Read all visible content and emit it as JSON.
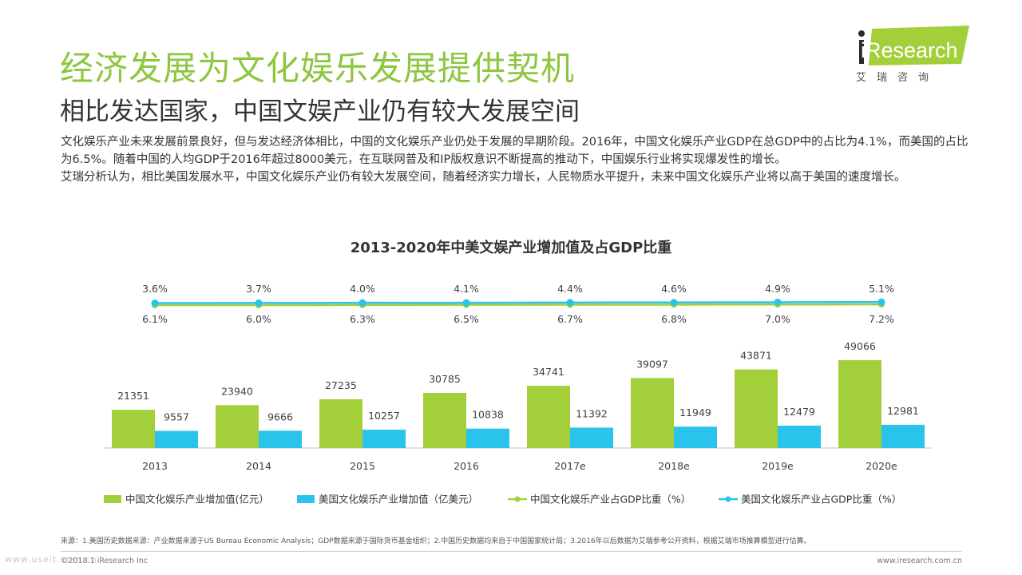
{
  "header": {
    "title": "经济发展为文化娱乐发展提供契机",
    "subtitle": "相比发达国家，中国文娱产业仍有较大发展空间",
    "logo_text": "iResearch",
    "logo_cn": "艾瑞咨询"
  },
  "body": {
    "paragraph1": "文化娱乐产业未来发展前景良好，但与发达经济体相比，中国的文化娱乐产业仍处于发展的早期阶段。2016年，中国文化娱乐产业GDP在总GDP中的占比为4.1%，而美国的占比为6.5%。随着中国的人均GDP于2016年超过8000美元，在互联网普及和IP版权意识不断提高的推动下，中国娱乐行业将实现爆发性的增长。",
    "paragraph2": "艾瑞分析认为，相比美国发展水平，中国文化娱乐产业仍有较大发展空间，随着经济实力增长，人民物质水平提升，未来中国文化娱乐产业将以高于美国的速度增长。"
  },
  "footer": {
    "source": "来源：1.美国历史数据来源：产业数据来源于US Bureau Economic Analysis；GDP数据来源于国际货币基金组织；2.中国历史数据均来自于中国国家统计局；3.2016年以后数据为艾瑞参考公开资料，根据艾瑞市场推算模型进行估算。",
    "copyright": "©2018.1 iResearch Inc",
    "website": "www.iresearch.com.cn",
    "watermark": "www.useit.com.cn"
  },
  "colors": {
    "title_green": "#8dc63f",
    "china_color": "#a3cf3a",
    "us_color": "#29c3ec"
  },
  "chart_data": {
    "type": "bar",
    "title": "2013-2020年中美文娱产业增加值及占GDP比重",
    "categories": [
      "2013",
      "2014",
      "2015",
      "2016",
      "2017e",
      "2018e",
      "2019e",
      "2020e"
    ],
    "series": [
      {
        "name": "中国文化娱乐产业增加值(亿元）",
        "type": "bar",
        "values": [
          21351,
          23940,
          27235,
          30785,
          34741,
          39097,
          43871,
          49066
        ]
      },
      {
        "name": "美国文化娱乐产业增加值（亿美元）",
        "type": "bar",
        "values": [
          9557,
          9666,
          10257,
          10838,
          11392,
          11949,
          12479,
          12981
        ]
      },
      {
        "name": "中国文化娱乐产业占GDP比重（%）",
        "type": "line",
        "values": [
          3.6,
          3.7,
          4.0,
          4.1,
          4.4,
          4.6,
          4.9,
          5.1
        ],
        "labels": [
          "3.6%",
          "3.7%",
          "4.0%",
          "4.1%",
          "4.4%",
          "4.6%",
          "4.9%",
          "5.1%"
        ]
      },
      {
        "name": "美国文化娱乐产业占GDP比重（%）",
        "type": "line",
        "values": [
          6.1,
          6.0,
          6.3,
          6.5,
          6.7,
          6.8,
          7.0,
          7.2
        ],
        "labels": [
          "6.1%",
          "6.0%",
          "6.3%",
          "6.5%",
          "6.7%",
          "6.8%",
          "7.0%",
          "7.2%"
        ]
      }
    ],
    "legend_position": "bottom"
  }
}
